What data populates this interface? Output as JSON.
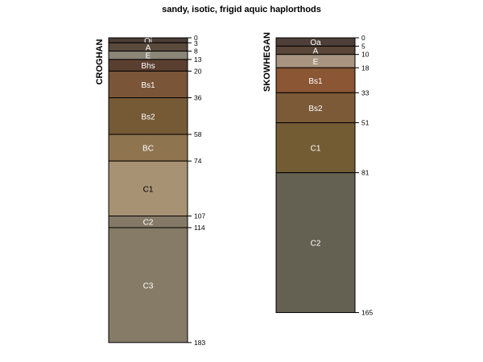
{
  "title": "sandy, isotic, frigid aquic haplorthods",
  "profiles": [
    {
      "name": "CROGHAN",
      "horizons": [
        {
          "name": "Oi",
          "top": 0,
          "bottom": 3,
          "color": "#4a3e36",
          "text_color": "#ffffff"
        },
        {
          "name": "A",
          "top": 3,
          "bottom": 8,
          "color": "#5a4a3c",
          "text_color": "#ffffff"
        },
        {
          "name": "E",
          "top": 8,
          "bottom": 13,
          "color": "#8c8676",
          "text_color": "#ffffff"
        },
        {
          "name": "Bhs",
          "top": 13,
          "bottom": 20,
          "color": "#5a3f30",
          "text_color": "#ffffff"
        },
        {
          "name": "Bs1",
          "top": 20,
          "bottom": 36,
          "color": "#7a5538",
          "text_color": "#ffffff"
        },
        {
          "name": "Bs2",
          "top": 36,
          "bottom": 58,
          "color": "#765a36",
          "text_color": "#ffffff"
        },
        {
          "name": "BC",
          "top": 58,
          "bottom": 74,
          "color": "#8f7450",
          "text_color": "#ffffff"
        },
        {
          "name": "C1",
          "top": 74,
          "bottom": 107,
          "color": "#a89274",
          "text_color": "#000000"
        },
        {
          "name": "C2",
          "top": 107,
          "bottom": 114,
          "color": "#857a68",
          "text_color": "#ffffff"
        },
        {
          "name": "C3",
          "top": 114,
          "bottom": 183,
          "color": "#857b66",
          "text_color": "#ffffff"
        }
      ],
      "depth_labels": [
        "0",
        "3",
        "8",
        "13",
        "20",
        "36",
        "58",
        "74",
        "107",
        "114",
        "183"
      ]
    },
    {
      "name": "SKOWHEGAN",
      "horizons": [
        {
          "name": "Oa",
          "top": 0,
          "bottom": 5,
          "color": "#4e4038",
          "text_color": "#ffffff"
        },
        {
          "name": "A",
          "top": 5,
          "bottom": 10,
          "color": "#5a4638",
          "text_color": "#ffffff"
        },
        {
          "name": "E",
          "top": 10,
          "bottom": 18,
          "color": "#a89480",
          "text_color": "#ffffff"
        },
        {
          "name": "Bs1",
          "top": 18,
          "bottom": 33,
          "color": "#8a5634",
          "text_color": "#ffffff"
        },
        {
          "name": "Bs2",
          "top": 33,
          "bottom": 51,
          "color": "#7c5a38",
          "text_color": "#ffffff"
        },
        {
          "name": "C1",
          "top": 51,
          "bottom": 81,
          "color": "#735c34",
          "text_color": "#ffffff"
        },
        {
          "name": "C2",
          "top": 81,
          "bottom": 165,
          "color": "#646052",
          "text_color": "#ffffff"
        }
      ],
      "depth_labels": [
        "0",
        "5",
        "10",
        "18",
        "33",
        "51",
        "81",
        "165"
      ]
    }
  ]
}
